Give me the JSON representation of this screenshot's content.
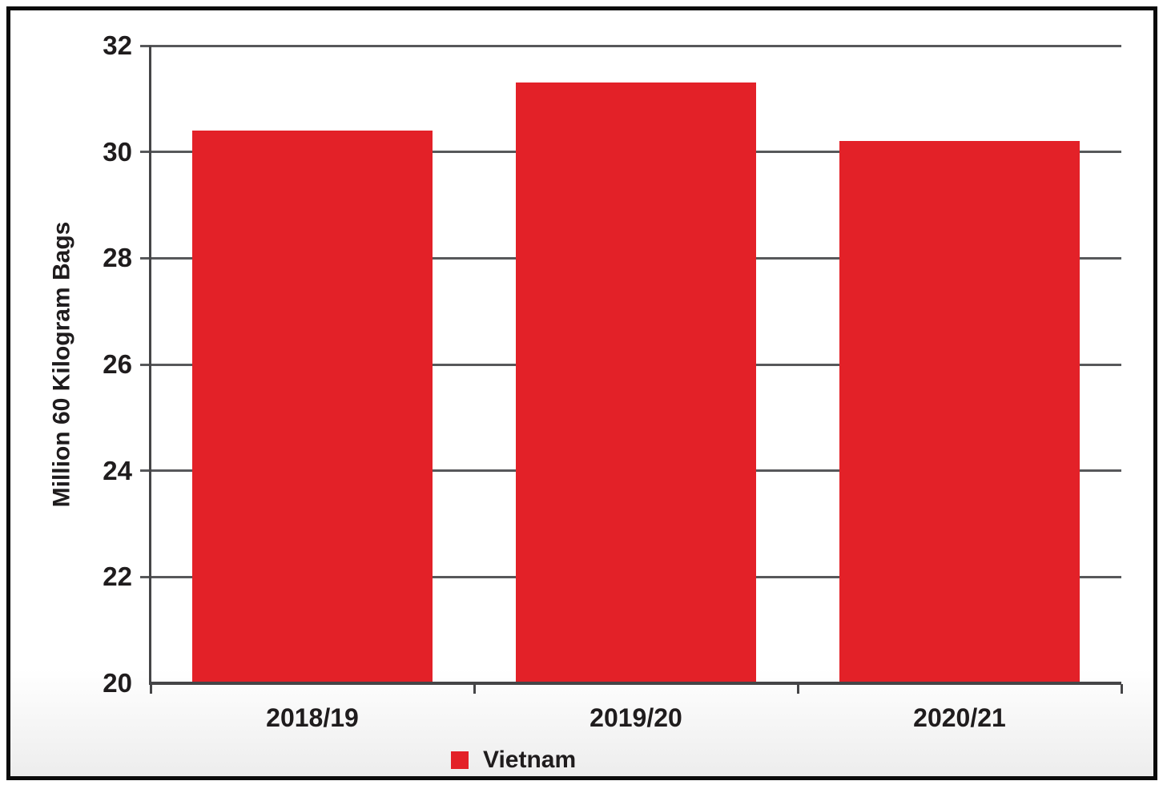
{
  "chart_data": {
    "type": "bar",
    "title": "",
    "categories": [
      "2018/19",
      "2019/20",
      "2020/21"
    ],
    "series": [
      {
        "name": "Vietnam",
        "values": [
          30.4,
          31.3,
          30.2
        ],
        "color": "#e32128"
      }
    ],
    "xlabel": "",
    "ylabel": "Million 60 Kilogram Bags",
    "ylim": [
      20,
      32
    ],
    "yticks": [
      20,
      22,
      24,
      26,
      28,
      30,
      32
    ],
    "grid": true,
    "legend_position": "bottom"
  },
  "colors": {
    "bar": "#e32128",
    "gridline": "#57585a",
    "axis": "#454547",
    "text": "#1f1c1d",
    "frame_border": "#0b0b0b"
  }
}
